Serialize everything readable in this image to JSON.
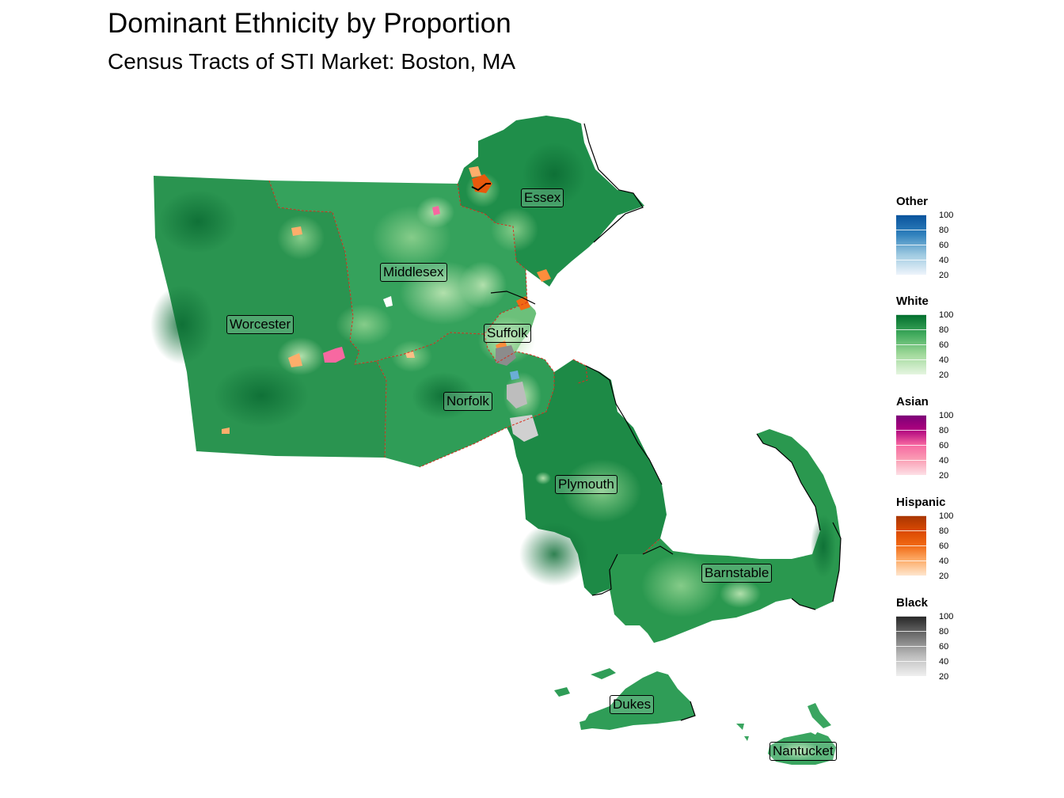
{
  "title": "Dominant Ethnicity by Proportion",
  "subtitle": "Census Tracts of STI Market: Boston, MA",
  "counties": [
    {
      "name": "Essex"
    },
    {
      "name": "Middlesex"
    },
    {
      "name": "Worcester"
    },
    {
      "name": "Suffolk"
    },
    {
      "name": "Norfolk"
    },
    {
      "name": "Plymouth"
    },
    {
      "name": "Barnstable"
    },
    {
      "name": "Dukes"
    },
    {
      "name": "Nantucket"
    }
  ],
  "legends": [
    {
      "title": "Other",
      "low_color": "#eef4fb",
      "high_color": "#08519c",
      "ticks": [
        "100",
        "80",
        "60",
        "40",
        "20"
      ]
    },
    {
      "title": "White",
      "low_color": "#e5f5e0",
      "high_color": "#006d2c",
      "ticks": [
        "100",
        "80",
        "60",
        "40",
        "20"
      ]
    },
    {
      "title": "Asian",
      "low_color": "#fde0e6",
      "high_color": "#7a0177",
      "ticks": [
        "100",
        "80",
        "60",
        "40",
        "20"
      ]
    },
    {
      "title": "Hispanic",
      "low_color": "#fee6ce",
      "high_color": "#a63603",
      "ticks": [
        "100",
        "80",
        "60",
        "40",
        "20"
      ]
    },
    {
      "title": "Black",
      "low_color": "#f0f0f0",
      "high_color": "#252525",
      "ticks": [
        "100",
        "80",
        "60",
        "40",
        "20"
      ]
    }
  ],
  "colors": {
    "water": "#ffffff",
    "county_border": "#d7301f",
    "tract_base": "#2e9a55",
    "tract_dark": "#157a3e",
    "tract_light": "#74c476"
  }
}
